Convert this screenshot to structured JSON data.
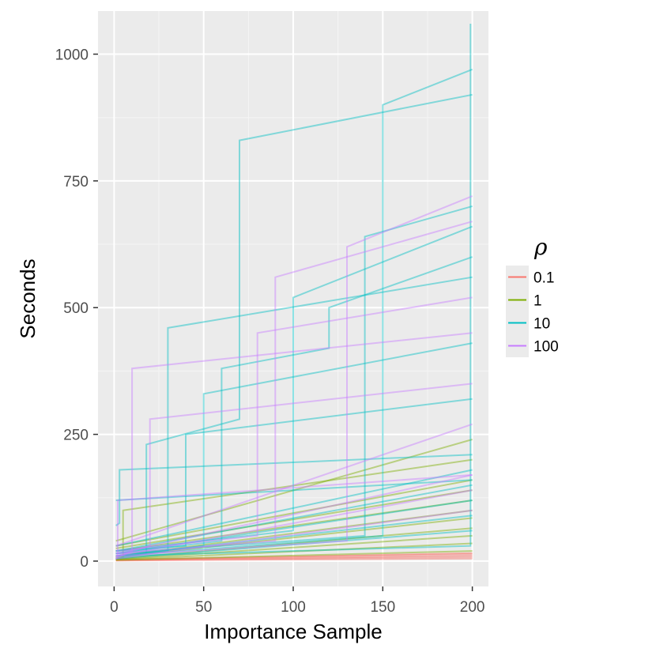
{
  "chart_data": {
    "type": "line",
    "title": "",
    "xlabel": "Importance Sample",
    "ylabel": "Seconds",
    "xlim": [
      -9,
      209
    ],
    "ylim": [
      -50,
      1085
    ],
    "x_ticks": [
      0,
      50,
      100,
      150,
      200
    ],
    "x_tick_labels": [
      "0",
      "50",
      "100",
      "150",
      "200"
    ],
    "y_ticks": [
      0,
      250,
      500,
      750,
      1000
    ],
    "y_tick_labels": [
      "0",
      "250",
      "500",
      "750",
      "1000"
    ],
    "grid": true,
    "legend": {
      "title": "ρ",
      "placement": "right",
      "entries": [
        {
          "label": "0.1",
          "color": "#F8766D"
        },
        {
          "label": "1",
          "color": "#7CAE00"
        },
        {
          "label": "10",
          "color": "#00BFC4"
        },
        {
          "label": "100",
          "color": "#C77CFF"
        }
      ]
    },
    "series_groups": [
      {
        "rho": "0.1",
        "color": "#F8766D",
        "runs": [
          {
            "x": [
              1,
              200
            ],
            "y": [
              1,
              5
            ]
          },
          {
            "x": [
              1,
              200
            ],
            "y": [
              2,
              8
            ]
          },
          {
            "x": [
              1,
              200
            ],
            "y": [
              1,
              11
            ]
          },
          {
            "x": [
              1,
              200
            ],
            "y": [
              3,
              14
            ]
          },
          {
            "x": [
              1,
              200
            ],
            "y": [
              2,
              16
            ]
          }
        ]
      },
      {
        "rho": "1",
        "color": "#7CAE00",
        "runs": [
          {
            "x": [
              1,
              200
            ],
            "y": [
              2,
              20
            ]
          },
          {
            "x": [
              1,
              200
            ],
            "y": [
              3,
              35
            ]
          },
          {
            "x": [
              1,
              200
            ],
            "y": [
              4,
              50
            ]
          },
          {
            "x": [
              1,
              200
            ],
            "y": [
              5,
              65
            ]
          },
          {
            "x": [
              1,
              200
            ],
            "y": [
              8,
              85
            ]
          },
          {
            "x": [
              1,
              200
            ],
            "y": [
              10,
              100
            ]
          },
          {
            "x": [
              1,
              200
            ],
            "y": [
              20,
              120
            ]
          },
          {
            "x": [
              1,
              200
            ],
            "y": [
              25,
              140
            ]
          },
          {
            "x": [
              1,
              200
            ],
            "y": [
              30,
              160
            ]
          },
          {
            "x": [
              1,
              5,
              5,
              200
            ],
            "y": [
              5,
              8,
              100,
              200
            ]
          },
          {
            "x": [
              1,
              200
            ],
            "y": [
              40,
              240
            ]
          }
        ]
      },
      {
        "rho": "10",
        "color": "#00BFC4",
        "runs": [
          {
            "x": [
              1,
              200
            ],
            "y": [
              5,
              60
            ]
          },
          {
            "x": [
              1,
              200
            ],
            "y": [
              10,
              90
            ]
          },
          {
            "x": [
              1,
              200
            ],
            "y": [
              15,
              120
            ]
          },
          {
            "x": [
              1,
              200
            ],
            "y": [
              20,
              150
            ]
          },
          {
            "x": [
              1,
              200
            ],
            "y": [
              30,
              180
            ]
          },
          {
            "x": [
              1,
              3,
              3,
              200
            ],
            "y": [
              70,
              75,
              180,
              210
            ]
          },
          {
            "x": [
              1,
              40,
              40,
              200
            ],
            "y": [
              20,
              30,
              250,
              320
            ]
          },
          {
            "x": [
              1,
              50,
              50,
              200
            ],
            "y": [
              10,
              30,
              330,
              430
            ]
          },
          {
            "x": [
              1,
              60,
              60,
              120,
              120,
              200
            ],
            "y": [
              15,
              40,
              380,
              420,
              500,
              600
            ]
          },
          {
            "x": [
              1,
              30,
              30,
              200
            ],
            "y": [
              10,
              20,
              460,
              560
            ]
          },
          {
            "x": [
              1,
              100,
              100,
              200
            ],
            "y": [
              20,
              60,
              520,
              660
            ]
          },
          {
            "x": [
              1,
              140,
              140,
              200
            ],
            "y": [
              15,
              50,
              640,
              700
            ]
          },
          {
            "x": [
              1,
              18,
              18,
              70,
              70,
              200
            ],
            "y": [
              5,
              15,
              230,
              280,
              830,
              920
            ]
          },
          {
            "x": [
              1,
              150,
              150,
              200
            ],
            "y": [
              10,
              50,
              900,
              970
            ]
          },
          {
            "x": [
              1,
              199,
              199
            ],
            "y": [
              10,
              30,
              1060
            ]
          },
          {
            "x": [
              1,
              200
            ],
            "y": [
              120,
              160
            ]
          }
        ]
      },
      {
        "rho": "100",
        "color": "#C77CFF",
        "runs": [
          {
            "x": [
              1,
              200
            ],
            "y": [
              5,
              100
            ]
          },
          {
            "x": [
              1,
              200
            ],
            "y": [
              10,
              140
            ]
          },
          {
            "x": [
              1,
              200
            ],
            "y": [
              15,
              170
            ]
          },
          {
            "x": [
              1,
              2,
              2,
              200
            ],
            "y": [
              5,
              10,
              120,
              170
            ]
          },
          {
            "x": [
              1,
              20,
              20,
              200
            ],
            "y": [
              10,
              30,
              280,
              350
            ]
          },
          {
            "x": [
              1,
              80,
              80,
              200
            ],
            "y": [
              20,
              50,
              450,
              520
            ]
          },
          {
            "x": [
              1,
              90,
              90,
              200
            ],
            "y": [
              15,
              40,
              560,
              670
            ]
          },
          {
            "x": [
              1,
              10,
              10,
              200
            ],
            "y": [
              5,
              20,
              380,
              450
            ]
          },
          {
            "x": [
              1,
              130,
              130,
              200
            ],
            "y": [
              10,
              40,
              620,
              720
            ]
          },
          {
            "x": [
              1,
              200
            ],
            "y": [
              30,
              270
            ]
          }
        ]
      }
    ]
  }
}
